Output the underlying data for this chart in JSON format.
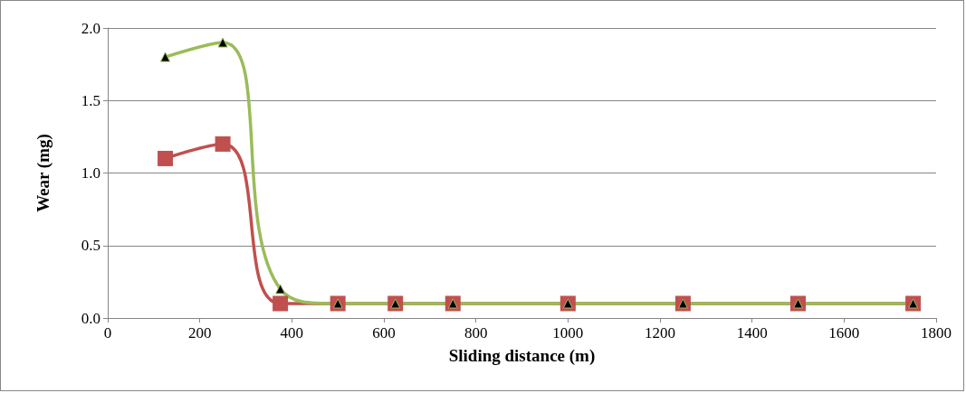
{
  "chart_data": {
    "type": "line",
    "xlabel": "Sliding distance (m)",
    "ylabel": "Wear (mg)",
    "x": [
      125,
      250,
      375,
      500,
      625,
      750,
      1000,
      1250,
      1500,
      1750
    ],
    "series": [
      {
        "color": "#c0504d",
        "marker": "square",
        "values": [
          1.1,
          1.2,
          0.1,
          0.1,
          0.1,
          0.1,
          0.1,
          0.1,
          0.1,
          0.1
        ]
      },
      {
        "color": "#9bbb59",
        "marker": "triangle",
        "values": [
          1.8,
          1.9,
          0.2,
          0.1,
          0.1,
          0.1,
          0.1,
          0.1,
          0.1,
          0.1
        ]
      }
    ],
    "xlim": [
      0,
      1800
    ],
    "xticks": [
      0,
      200,
      400,
      600,
      800,
      1000,
      1200,
      1400,
      1600,
      1800
    ],
    "ylim": [
      0,
      2
    ],
    "yticks": [
      {
        "value": 0,
        "label": "0.0"
      },
      {
        "value": 0.5,
        "label": "0.5"
      },
      {
        "value": 1,
        "label": "1.0"
      },
      {
        "value": 1.5,
        "label": "1.5"
      },
      {
        "value": 2,
        "label": "2.0"
      }
    ],
    "grid": "y",
    "line_style": "solid"
  }
}
